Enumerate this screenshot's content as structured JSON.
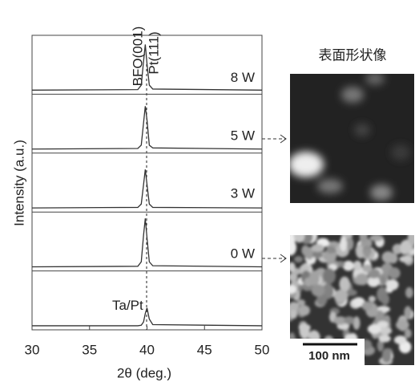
{
  "chart_data": {
    "type": "line",
    "xlabel": "2θ (deg.)",
    "ylabel": "Intensity (a.u.)",
    "annotations": [
      "BFO(001)",
      "Pt(111)"
    ],
    "xlim": [
      30,
      50
    ],
    "xticks": [
      30,
      35,
      40,
      45,
      50
    ],
    "ylim": [
      0,
      1
    ],
    "x": [
      30,
      39.2,
      39.5,
      39.7,
      39.85,
      40.0,
      40.2,
      40.5,
      50
    ],
    "color": "#333333",
    "series": [
      {
        "name": "8 W",
        "values": [
          0.03,
          0.04,
          0.12,
          0.55,
          0.85,
          0.5,
          0.12,
          0.05,
          0.03
        ]
      },
      {
        "name": "5 W",
        "values": [
          0.03,
          0.04,
          0.1,
          0.5,
          0.8,
          0.55,
          0.1,
          0.05,
          0.03
        ]
      },
      {
        "name": "3 W",
        "values": [
          0.03,
          0.04,
          0.1,
          0.45,
          0.72,
          0.45,
          0.1,
          0.04,
          0.03
        ]
      },
      {
        "name": "0 W",
        "values": [
          0.03,
          0.04,
          0.12,
          0.6,
          0.9,
          0.55,
          0.12,
          0.05,
          0.03
        ]
      },
      {
        "name": "Ta/Pt",
        "values": [
          0.03,
          0.03,
          0.04,
          0.1,
          0.25,
          0.35,
          0.15,
          0.05,
          0.03
        ]
      }
    ]
  },
  "side_title": "表面形状像",
  "scale_bar": "100 nm"
}
